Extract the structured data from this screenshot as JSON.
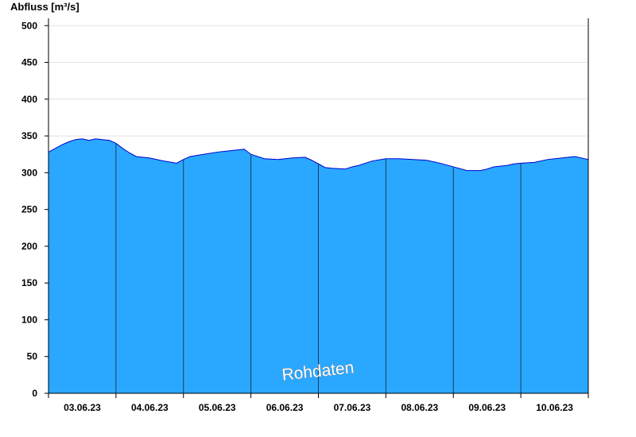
{
  "chart_data": {
    "type": "area",
    "title": "",
    "ylabel": "Abfluss [m³/s]",
    "xlabel": "",
    "ylim": [
      0,
      510
    ],
    "yticks": [
      0,
      50,
      100,
      150,
      200,
      250,
      300,
      350,
      400,
      450,
      500
    ],
    "xlim_days": [
      0,
      8
    ],
    "grid": true,
    "watermark": "Rohdaten",
    "colors": {
      "fill": "#2aa8ff",
      "line": "#0000cc",
      "grid": "#e4e4e4",
      "daySeparator": "#1a3a5c"
    },
    "day_labels": [
      "03.06.23",
      "04.06.23",
      "05.06.23",
      "06.06.23",
      "07.06.23",
      "08.06.23",
      "09.06.23",
      "10.06.23"
    ],
    "series": [
      {
        "x": [
          0,
          0.1,
          0.2,
          0.3,
          0.4,
          0.5,
          0.6,
          0.7,
          0.8,
          0.9,
          1.0,
          1.1,
          1.2,
          1.3,
          1.5,
          1.7,
          1.9,
          2.0,
          2.1,
          2.3,
          2.5,
          2.7,
          2.9,
          3.0,
          3.2,
          3.4,
          3.6,
          3.8,
          3.9,
          4.0,
          4.1,
          4.2,
          4.4,
          4.5,
          4.6,
          4.8,
          5.0,
          5.2,
          5.4,
          5.6,
          5.8,
          6.0,
          6.2,
          6.4,
          6.5,
          6.6,
          6.8,
          6.9,
          7.0,
          7.2,
          7.4,
          7.6,
          7.8,
          8.0
        ],
        "values": [
          328,
          333,
          338,
          342,
          345,
          346,
          344,
          346,
          345,
          344,
          340,
          333,
          327,
          322,
          320,
          316,
          313,
          318,
          322,
          325,
          328,
          330,
          332,
          325,
          319,
          318,
          320,
          321,
          317,
          312,
          307,
          306,
          305,
          308,
          310,
          316,
          319,
          319,
          318,
          317,
          313,
          308,
          303,
          303,
          305,
          308,
          310,
          312,
          313,
          314,
          318,
          320,
          322,
          318
        ]
      }
    ]
  }
}
